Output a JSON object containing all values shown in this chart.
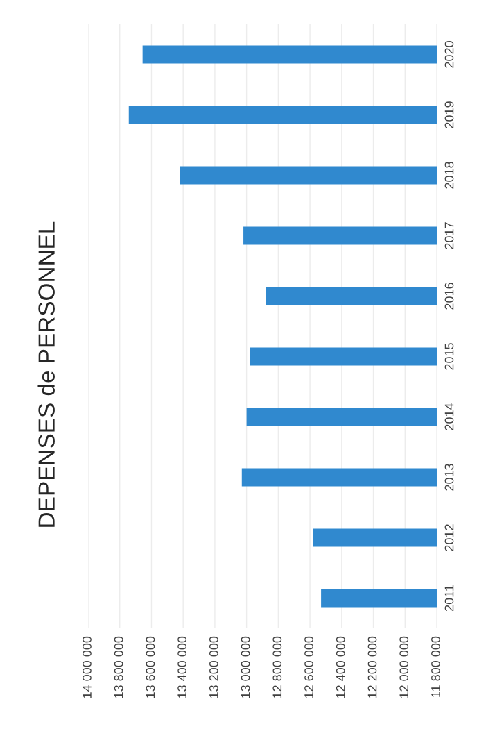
{
  "chart_data": {
    "type": "bar",
    "orientation": "horizontal",
    "title": "DEPENSES de PERSONNEL",
    "categories": [
      "2020",
      "2019",
      "2018",
      "2017",
      "2016",
      "2015",
      "2014",
      "2013",
      "2012",
      "2011"
    ],
    "values": [
      13656000,
      13743000,
      13420000,
      13020000,
      12880000,
      12980000,
      13000000,
      13030000,
      12580000,
      12530000
    ],
    "color": "#3089cf",
    "xlim": [
      14000000,
      11800000
    ],
    "xticks": [
      {
        "value": 14000000,
        "label": "14 000 000"
      },
      {
        "value": 13800000,
        "label": "13 800 000"
      },
      {
        "value": 13600000,
        "label": "13 600 000"
      },
      {
        "value": 13400000,
        "label": "13 400 000"
      },
      {
        "value": 13200000,
        "label": "13 200 000"
      },
      {
        "value": 13000000,
        "label": "13 000 000"
      },
      {
        "value": 12800000,
        "label": "12 800 000"
      },
      {
        "value": 12600000,
        "label": "12 600 000"
      },
      {
        "value": 12400000,
        "label": "12 400 000"
      },
      {
        "value": 12200000,
        "label": "12 200 000"
      },
      {
        "value": 12000000,
        "label": "12 000 000"
      },
      {
        "value": 11800000,
        "label": "11 800 000"
      }
    ],
    "grid": "x",
    "legend": false
  }
}
